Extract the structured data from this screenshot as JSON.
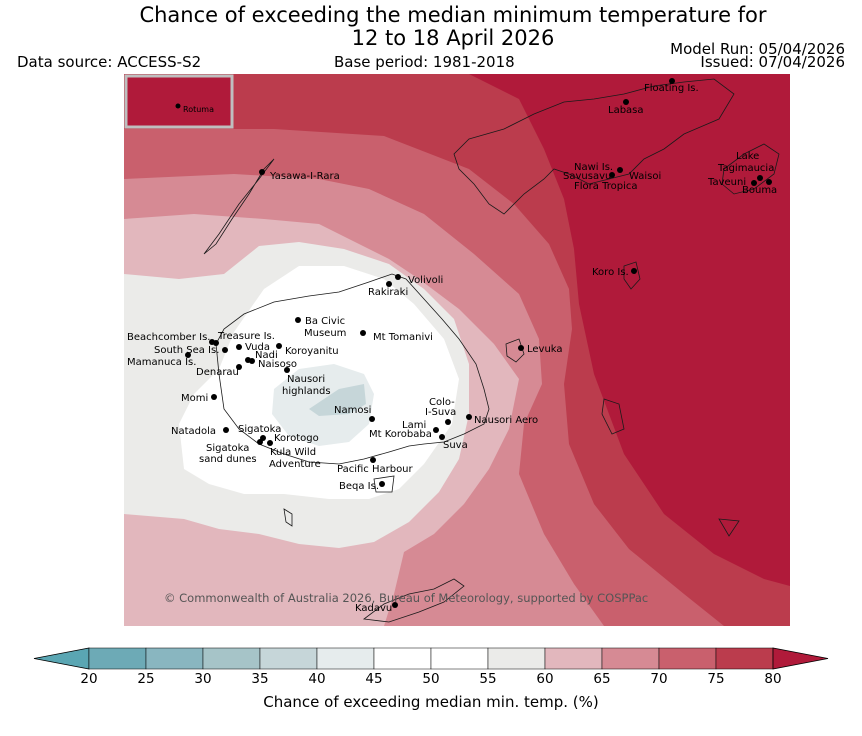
{
  "title_line1": "Chance of exceeding the median minimum temperature for",
  "title_line2": "12 to 18 April 2026",
  "data_source": "Data source: ACCESS-S2",
  "base_period": "Base period: 1981-2018",
  "model_run": "Model Run: 05/04/2026",
  "issued": "Issued: 07/04/2026",
  "inset_label": "Rotuma",
  "copyright": "© Commonwealth of Australia 2026, Bureau of Meteorology, supported by COSPPac",
  "places": [
    "Floating Is.",
    "Labasa",
    "Nawi Is.",
    "Savusavu",
    "Waisoi",
    "Flora Tropica",
    "Lake",
    "Tagimaucia",
    "Taveuni",
    "Bouma",
    "Yasawa-I-Rara",
    "Koro Is.",
    "Volivoli",
    "Rakiraki",
    "Ba Civic",
    "Museum",
    "Mt Tomanivi",
    "Levuka",
    "Beachcomber Is.",
    "Treasure Is.",
    "South Sea Is.",
    "Vuda",
    "Koroyanitu",
    "Mamanuca Is.",
    "Nadi",
    "Naisoso",
    "Denarau",
    "Nausori",
    "highlands",
    "Momi",
    "Namosi",
    "Colo-",
    "I-Suva",
    "Nausori Aero",
    "Lami",
    "Mt Korobaba",
    "Suva",
    "Natadola",
    "Sigatoka",
    "Korotogo",
    "Sigatoka",
    "sand dunes",
    "Kula Wild",
    "Adventure",
    "Pacific Harbour",
    "Beqa Is.",
    "Kadavu"
  ],
  "colorbar": {
    "title": "Chance of exceeding median min. temp. (%)",
    "ticks": [
      "20",
      "25",
      "30",
      "35",
      "40",
      "45",
      "50",
      "55",
      "60",
      "65",
      "70",
      "75",
      "80"
    ],
    "colors": [
      "#5aa6b3",
      "#6daab6",
      "#89b6c0",
      "#a6c4c8",
      "#c6d6d9",
      "#e6eced",
      "#ffffff",
      "#ffffff",
      "#ebebe9",
      "#e2b7bd",
      "#d68a94",
      "#c9606d",
      "#bb3c4d",
      "#b01a3a"
    ]
  }
}
